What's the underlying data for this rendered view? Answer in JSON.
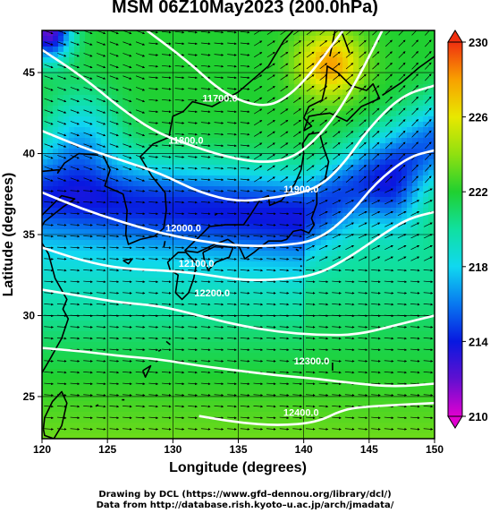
{
  "title": "MSM 06Z10May2023 (200.0hPa)",
  "colors": {
    "background": "#ffffff",
    "contour": "#ffffff",
    "coastline": "#000000",
    "vector": "#000000"
  },
  "chart_data": {
    "type": "heatmap",
    "title": "MSM 06Z10May2023 (200.0hPa)",
    "xlabel": "Longitude (degrees)",
    "ylabel": "Latitude  (degrees)",
    "xlim": [
      120,
      150
    ],
    "ylim": [
      22.4,
      47.6
    ],
    "x_ticks": [
      120,
      125,
      130,
      135,
      140,
      145,
      150
    ],
    "y_ticks": [
      25,
      30,
      35,
      40,
      45
    ],
    "x_tick_labels": [
      "120",
      "125",
      "130",
      "135",
      "140",
      "145",
      "150"
    ],
    "y_tick_labels": [
      "25",
      "30",
      "35",
      "40",
      "45"
    ],
    "grid": true,
    "shaded_field": "temperature (K)",
    "colorbar": {
      "range": [
        210,
        230
      ],
      "ticks": [
        210,
        214,
        218,
        222,
        226,
        230
      ],
      "tick_labels": [
        "210",
        "214",
        "218",
        "222",
        "226",
        "230"
      ],
      "stops": [
        {
          "value": 210,
          "color": "#e000d0"
        },
        {
          "value": 212,
          "color": "#6010d0"
        },
        {
          "value": 214,
          "color": "#0818e0"
        },
        {
          "value": 216,
          "color": "#0878f0"
        },
        {
          "value": 218,
          "color": "#10d8f0"
        },
        {
          "value": 220,
          "color": "#10e0a0"
        },
        {
          "value": 222,
          "color": "#20d030"
        },
        {
          "value": 224,
          "color": "#90e010"
        },
        {
          "value": 226,
          "color": "#e8e800"
        },
        {
          "value": 228,
          "color": "#f8a000"
        },
        {
          "value": 230,
          "color": "#f03010"
        }
      ]
    },
    "contours": [
      {
        "value": 11700,
        "label": "11700.0",
        "points": [
          [
            128,
            47.6
          ],
          [
            131,
            45.8
          ],
          [
            134,
            43.6
          ],
          [
            137,
            42.8
          ],
          [
            139,
            43.6
          ],
          [
            141,
            45.4
          ],
          [
            143,
            47.6
          ]
        ]
      },
      {
        "value": 11800,
        "label": "11800.0",
        "points": [
          [
            120,
            46.4
          ],
          [
            123,
            44.8
          ],
          [
            126,
            42.8
          ],
          [
            128.5,
            41.4
          ],
          [
            131,
            40.6
          ],
          [
            134,
            39.8
          ],
          [
            137,
            39.4
          ],
          [
            139.5,
            39.8
          ],
          [
            142,
            41.8
          ],
          [
            144,
            44.4
          ],
          [
            146,
            47.6
          ]
        ]
      },
      {
        "value": 11900,
        "label": "11900.0",
        "points": [
          [
            120,
            41.4
          ],
          [
            123,
            40.4
          ],
          [
            126,
            39.6
          ],
          [
            129,
            38.8
          ],
          [
            132,
            37.6
          ],
          [
            135,
            37.0
          ],
          [
            138,
            37.3
          ],
          [
            141,
            37.8
          ],
          [
            143,
            39.3
          ],
          [
            145,
            41.6
          ],
          [
            147.5,
            43.6
          ],
          [
            150,
            44.2
          ]
        ]
      },
      {
        "value": 12000,
        "label": "12000.0",
        "points": [
          [
            120,
            37.6
          ],
          [
            123,
            36.6
          ],
          [
            126,
            35.8
          ],
          [
            129,
            35.1
          ],
          [
            132,
            34.6
          ],
          [
            135,
            34.3
          ],
          [
            138,
            34.3
          ],
          [
            141,
            34.6
          ],
          [
            143.5,
            36.2
          ],
          [
            145.5,
            38.2
          ],
          [
            148,
            39.8
          ],
          [
            150,
            40.2
          ]
        ]
      },
      {
        "value": 12100,
        "label": "12100.0",
        "points": [
          [
            120,
            34.2
          ],
          [
            123,
            33.4
          ],
          [
            126,
            32.9
          ],
          [
            129,
            32.8
          ],
          [
            132,
            32.6
          ],
          [
            135,
            32.2
          ],
          [
            138,
            32.2
          ],
          [
            141,
            32.5
          ],
          [
            143.5,
            33.6
          ],
          [
            146,
            35.0
          ],
          [
            148,
            36.0
          ],
          [
            150,
            36.4
          ]
        ]
      },
      {
        "value": 12200,
        "label": "12200.0",
        "points": [
          [
            120,
            31.6
          ],
          [
            123,
            31.2
          ],
          [
            126,
            30.8
          ],
          [
            129,
            30.6
          ],
          [
            132,
            30.0
          ],
          [
            135,
            29.4
          ],
          [
            138,
            29.0
          ],
          [
            141,
            28.8
          ],
          [
            144,
            28.8
          ],
          [
            147,
            29.4
          ],
          [
            150,
            30.0
          ]
        ]
      },
      {
        "value": 12300,
        "label": "12300.0",
        "points": [
          [
            120,
            28.0
          ],
          [
            123,
            27.8
          ],
          [
            126,
            27.5
          ],
          [
            129,
            27.3
          ],
          [
            132,
            26.9
          ],
          [
            135,
            26.6
          ],
          [
            138,
            26.3
          ],
          [
            141,
            26.1
          ],
          [
            144,
            25.8
          ],
          [
            147,
            25.6
          ],
          [
            150,
            25.8
          ]
        ]
      },
      {
        "value": 12400,
        "label": "12400.0",
        "points": [
          [
            132,
            23.8
          ],
          [
            135,
            23.4
          ],
          [
            138,
            23.2
          ],
          [
            141,
            23.4
          ],
          [
            143,
            24.2
          ],
          [
            145,
            24.4
          ],
          [
            150,
            24.6
          ]
        ]
      }
    ],
    "contour_labels": [
      {
        "text": "11700.0",
        "x": 133.6,
        "y": 43.2
      },
      {
        "text": "11800.0",
        "x": 131.0,
        "y": 40.6
      },
      {
        "text": "11900.0",
        "x": 139.8,
        "y": 37.6
      },
      {
        "text": "12000.0",
        "x": 130.8,
        "y": 35.2
      },
      {
        "text": "12100.0",
        "x": 131.8,
        "y": 33.0
      },
      {
        "text": "12200.0",
        "x": 133.0,
        "y": 31.2
      },
      {
        "text": "12300.0",
        "x": 140.6,
        "y": 27.0
      },
      {
        "text": "12400.0",
        "x": 139.8,
        "y": 23.8
      }
    ]
  },
  "credits": {
    "drawing": "Drawing by DCL (https://www.gfd–dennou.org/library/dcl/)",
    "data": "Data from http://database.rish.kyoto–u.ac.jp/arch/jmadata/"
  }
}
